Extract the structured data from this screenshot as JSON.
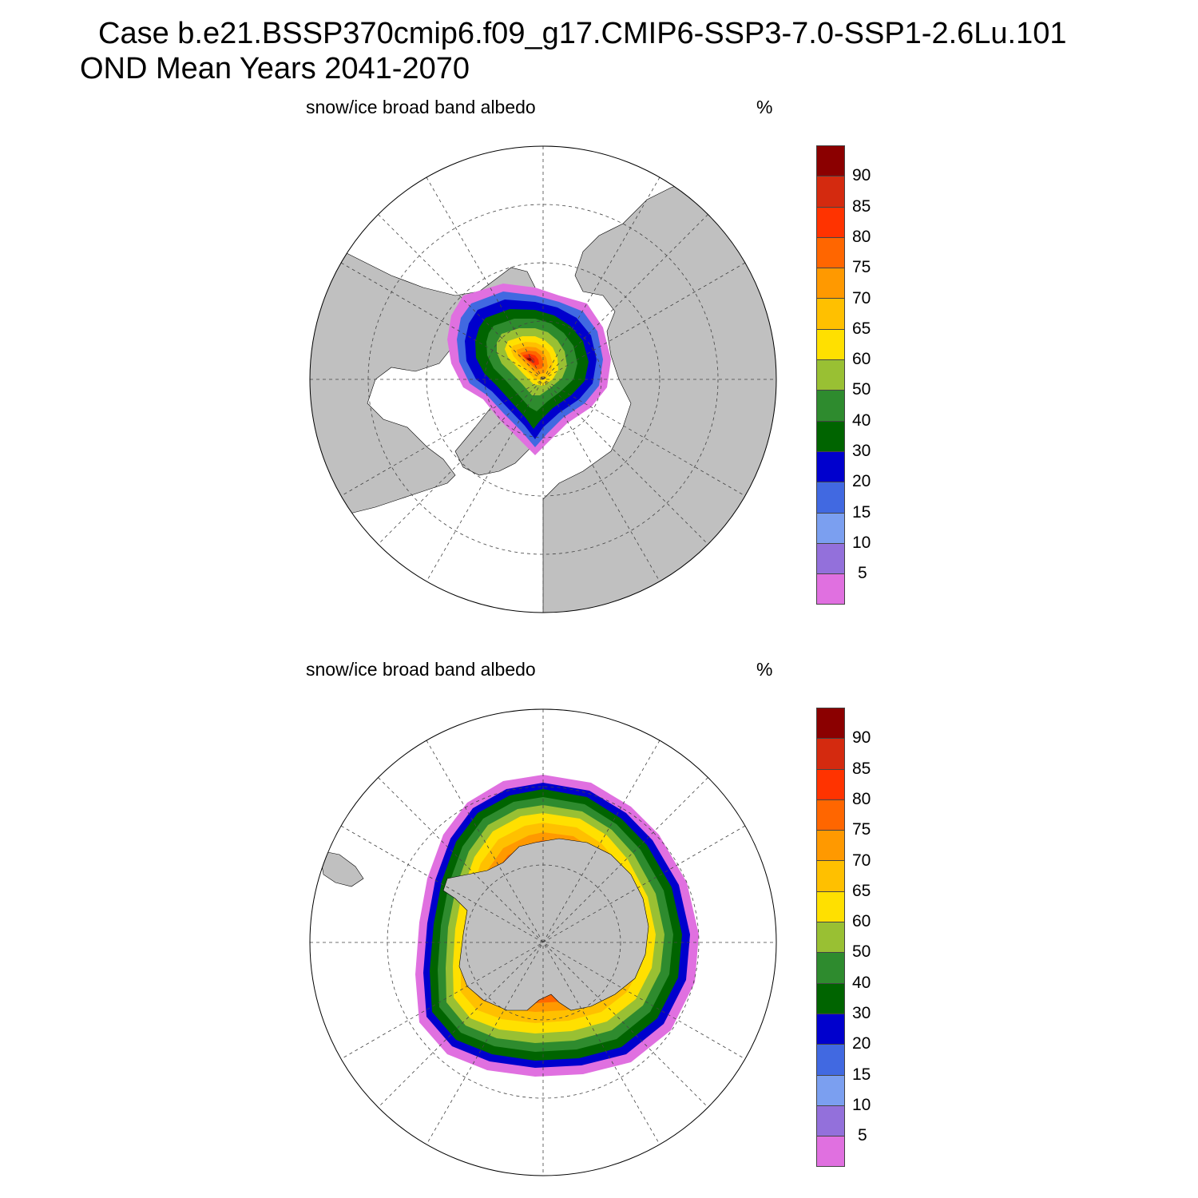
{
  "title": {
    "line1": "Case b.e21.BSSP370cmip6.f09_g17.CMIP6-SSP3-7.0-SSP1-2.6Lu.101",
    "line2": "OND Mean   Years 2041-2070"
  },
  "panels": [
    {
      "id": "north",
      "hemisphere": "north",
      "variable": "snow/ice broad band albedo",
      "units": "%"
    },
    {
      "id": "south",
      "hemisphere": "south",
      "variable": "snow/ice broad band albedo",
      "units": "%"
    }
  ],
  "colorbar": {
    "colors": [
      "#8b0000",
      "#d42a0f",
      "#ff3300",
      "#ff6600",
      "#ff9900",
      "#ffc000",
      "#ffe000",
      "#99c033",
      "#2e8b2e",
      "#006400",
      "#0000cd",
      "#4169e1",
      "#7b9ff0",
      "#9370db",
      "#e070e0"
    ],
    "labels": [
      "90",
      "85",
      "80",
      "75",
      "70",
      "65",
      "60",
      "50",
      "40",
      "30",
      "20",
      "15",
      "10",
      "5"
    ]
  },
  "style": {
    "land_color": "#c0c0c0",
    "ocean_color": "#ffffff"
  }
}
